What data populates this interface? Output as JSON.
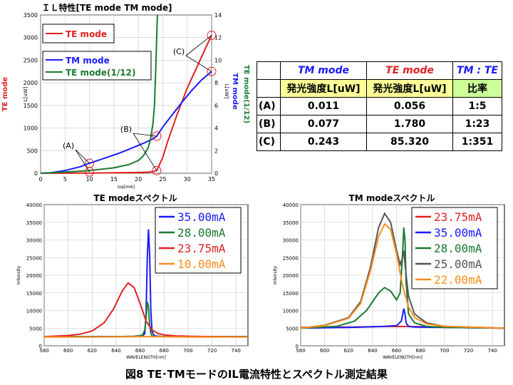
{
  "caption": "図8 TE･TMモードのIL電流特性とスペクトル測定結果",
  "chart_data": [
    {
      "type": "line",
      "title": "ＩＬ特性[TE mode TM mode]",
      "xlabel": "Iop[mA]",
      "ylabel_left_outer": "TE mode",
      "ylabel_left_inner": "L[uW]",
      "ylabel_right_inner": "TM mode",
      "ylabel_right_inner2": "L[uW]",
      "ylabel_right_outer": "TE mode(1/12)",
      "xlim": [
        0,
        35
      ],
      "ylim_left": [
        0,
        3500
      ],
      "ylim_right": [
        0,
        14
      ],
      "x_ticks": [
        0,
        5,
        10,
        15,
        20,
        25,
        30,
        35
      ],
      "y_left_ticks": [
        0,
        500,
        1000,
        1500,
        2000,
        2500,
        3000,
        3500
      ],
      "y_right_ticks": [
        0,
        2,
        4,
        6,
        8,
        10,
        12,
        14
      ],
      "grid": true,
      "legend": [
        "TE mode",
        "TM mode",
        "TE mode(1/12)"
      ],
      "series": [
        {
          "name": "TE mode",
          "axis": "left",
          "color": "#e02020",
          "x": [
            0,
            5,
            10,
            15,
            20,
            22,
            23,
            23.75,
            24,
            25,
            26,
            28,
            30,
            32,
            34,
            35
          ],
          "y": [
            0,
            2,
            5,
            10,
            18,
            25,
            35,
            60,
            110,
            350,
            700,
            1320,
            1880,
            2350,
            2820,
            3050
          ]
        },
        {
          "name": "TM mode",
          "axis": "left",
          "color": "#1a1aff",
          "x": [
            0,
            2,
            5,
            8,
            10,
            13,
            16,
            19,
            21,
            23,
            23.75,
            25,
            27,
            29,
            31,
            33,
            35
          ],
          "y": [
            0,
            10,
            60,
            140,
            220,
            330,
            440,
            570,
            660,
            760,
            820,
            1020,
            1300,
            1580,
            1840,
            2070,
            2250
          ]
        },
        {
          "name": "TE mode(1/12)",
          "axis": "left",
          "color": "#1a7a30",
          "x": [
            0,
            5,
            10,
            15,
            18,
            20,
            21,
            22,
            22.5,
            23,
            23.3,
            23.6,
            23.75,
            23.9
          ],
          "y": [
            0,
            25,
            60,
            120,
            190,
            280,
            380,
            560,
            760,
            1100,
            1500,
            2400,
            3000,
            3500
          ]
        }
      ],
      "annotations": [
        {
          "text": "(A)",
          "points": [
            [
              10,
              220
            ],
            [
              10,
              30
            ]
          ]
        },
        {
          "text": "(B)",
          "points": [
            [
              23.75,
              820
            ],
            [
              23.75,
              60
            ]
          ]
        },
        {
          "text": "(C)",
          "points": [
            [
              35,
              3050
            ],
            [
              35,
              2250
            ]
          ]
        }
      ]
    },
    {
      "type": "table",
      "headers": [
        "",
        "TM mode",
        "TE mode",
        "TM : TE"
      ],
      "subheaders": [
        "",
        "発光強度L[uW]",
        "発光強度L[uW]",
        "比率"
      ],
      "rows": [
        [
          "(A)",
          "0.011",
          "0.056",
          "1:5"
        ],
        [
          "(B)",
          "0.077",
          "1.780",
          "1:23"
        ],
        [
          "(C)",
          "0.243",
          "85.320",
          "1:351"
        ]
      ]
    },
    {
      "type": "line",
      "title": "TE modeスペクトル",
      "xlabel": "WAVELENGTH[nm]",
      "ylabel": "Intensity",
      "xlim": [
        580,
        750
      ],
      "ylim": [
        0,
        40000
      ],
      "x_ticks": [
        580,
        600,
        620,
        640,
        660,
        680,
        700,
        720,
        740
      ],
      "y_ticks": [
        0,
        5000,
        10000,
        15000,
        20000,
        25000,
        30000,
        35000,
        40000
      ],
      "grid": true,
      "legend": [
        "35.00mA",
        "28.00mA",
        "23.75mA",
        "10.00mA"
      ],
      "series": [
        {
          "name": "35.00mA",
          "color": "#1a1aff",
          "x": [
            580,
            600,
            620,
            640,
            655,
            662,
            664,
            665,
            666,
            667,
            668,
            669,
            670,
            672,
            680,
            700,
            750
          ],
          "y": [
            2600,
            2600,
            2600,
            2600,
            2600,
            2700,
            3500,
            9000,
            25000,
            33000,
            26000,
            10000,
            4000,
            2800,
            2600,
            2600,
            2600
          ]
        },
        {
          "name": "28.00mA",
          "color": "#1a7a30",
          "x": [
            580,
            600,
            620,
            640,
            655,
            662,
            664,
            665,
            666,
            667,
            668,
            669,
            670,
            672,
            680,
            700,
            750
          ],
          "y": [
            2600,
            2600,
            2600,
            2600,
            2700,
            3000,
            4500,
            8000,
            12500,
            11000,
            6000,
            3500,
            2800,
            2700,
            2600,
            2600,
            2600
          ]
        },
        {
          "name": "23.75mA",
          "color": "#e02020",
          "x": [
            580,
            600,
            610,
            620,
            630,
            638,
            645,
            650,
            655,
            660,
            665,
            670,
            675,
            680,
            690,
            700,
            720,
            750
          ],
          "y": [
            2600,
            2900,
            3300,
            4200,
            6500,
            10500,
            15500,
            17800,
            16500,
            12000,
            7000,
            4500,
            3500,
            3100,
            2800,
            2700,
            2600,
            2500
          ]
        },
        {
          "name": "10.00mA",
          "color": "#ff8c1a",
          "x": [
            580,
            620,
            660,
            700,
            750
          ],
          "y": [
            2500,
            2500,
            2600,
            2500,
            2500
          ]
        }
      ]
    },
    {
      "type": "line",
      "title": "TM modeスペクトル",
      "xlabel": "WAVELENGTH[nm]",
      "ylabel": "Intensity",
      "xlim": [
        580,
        750
      ],
      "ylim": [
        0,
        40000
      ],
      "x_ticks": [
        580,
        600,
        620,
        640,
        660,
        680,
        700,
        720,
        740
      ],
      "y_ticks": [
        0,
        5000,
        10000,
        15000,
        20000,
        25000,
        30000,
        35000,
        40000
      ],
      "grid": true,
      "legend": [
        "23.75mA",
        "35.00mA",
        "28.00mA",
        "25.00mA",
        "22.00mA"
      ],
      "series": [
        {
          "name": "23.75mA",
          "color": "#e02020",
          "x": [
            580,
            620,
            660,
            700,
            750
          ],
          "y": [
            5200,
            5300,
            5500,
            5300,
            5000
          ]
        },
        {
          "name": "35.00mA",
          "color": "#1a1aff",
          "x": [
            580,
            620,
            650,
            660,
            664,
            666,
            667,
            668,
            670,
            675,
            700,
            750
          ],
          "y": [
            5000,
            5200,
            5500,
            5700,
            7000,
            10500,
            9000,
            6500,
            5500,
            5300,
            5200,
            5000
          ]
        },
        {
          "name": "28.00mA",
          "color": "#1a7a30",
          "x": [
            580,
            610,
            625,
            635,
            645,
            650,
            655,
            660,
            663,
            665,
            666,
            667,
            668,
            670,
            675,
            685,
            700,
            750
          ],
          "y": [
            5000,
            5500,
            7000,
            10000,
            15000,
            16500,
            15500,
            13000,
            15000,
            26000,
            33500,
            30000,
            18000,
            9000,
            6500,
            5500,
            5200,
            5000
          ]
        },
        {
          "name": "25.00mA",
          "color": "#555555",
          "x": [
            580,
            600,
            620,
            630,
            638,
            645,
            650,
            655,
            660,
            663,
            665,
            666,
            668,
            670,
            675,
            685,
            700,
            750
          ],
          "y": [
            5000,
            5800,
            8000,
            12500,
            22000,
            33500,
            37500,
            35000,
            27000,
            23000,
            25000,
            27000,
            20000,
            14000,
            9000,
            6500,
            5500,
            5000
          ]
        },
        {
          "name": "22.00mA",
          "color": "#ff8c1a",
          "x": [
            580,
            600,
            620,
            630,
            638,
            645,
            650,
            655,
            660,
            665,
            670,
            675,
            685,
            700,
            750
          ],
          "y": [
            5000,
            5700,
            7800,
            12000,
            21000,
            31000,
            34500,
            33000,
            26000,
            17000,
            11000,
            8000,
            6200,
            5500,
            5000
          ]
        }
      ]
    }
  ]
}
